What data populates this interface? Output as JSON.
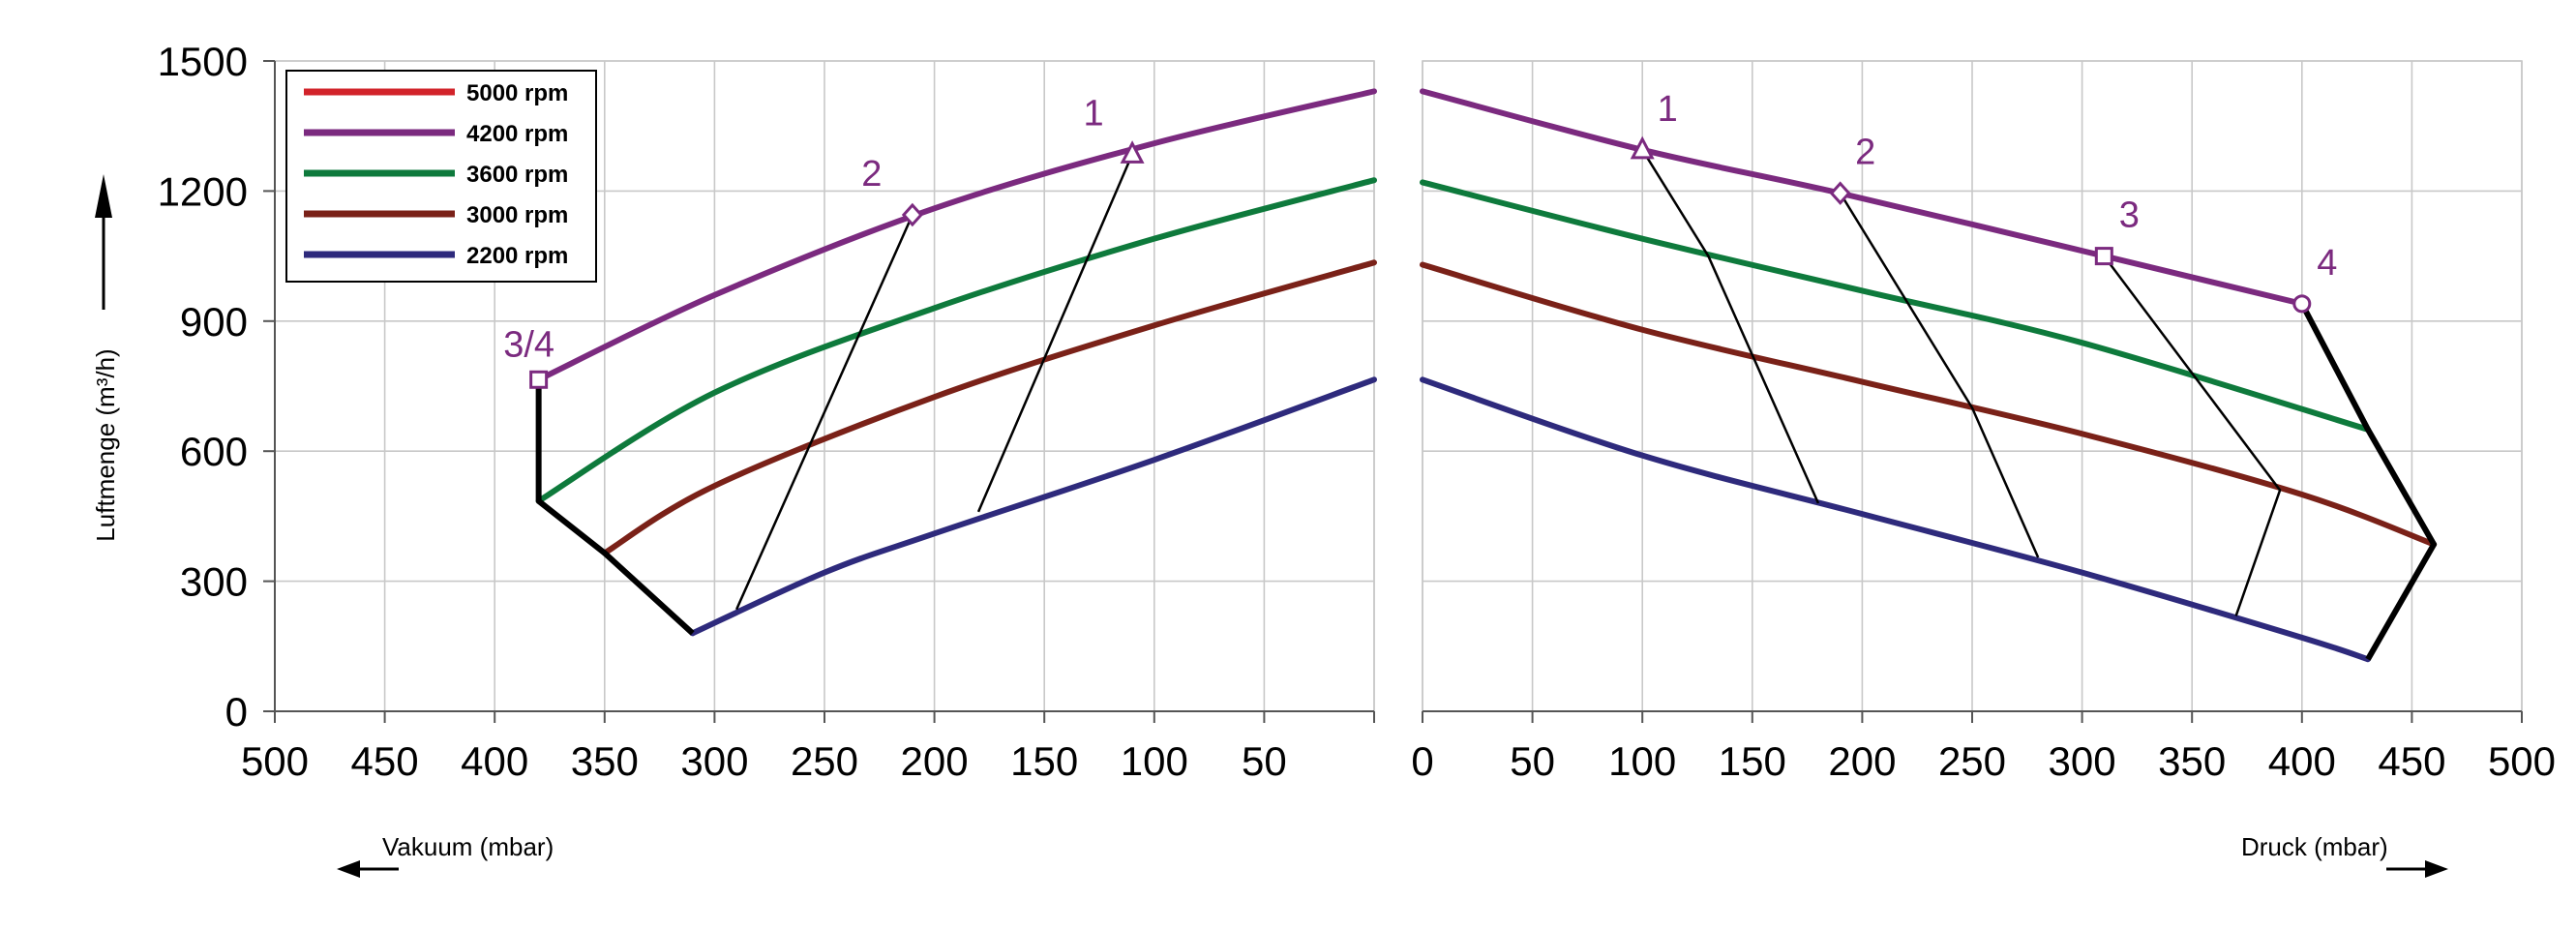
{
  "chart_data": {
    "type": "line",
    "y_axis": {
      "label": "Luftmenge (m³/h)",
      "ylim": [
        0,
        1500
      ],
      "ticks": [
        0,
        300,
        600,
        900,
        1200,
        1500
      ],
      "tick_labels": [
        "0",
        "300",
        "600",
        "900",
        "1200",
        "1500"
      ]
    },
    "panels": [
      {
        "name": "vacuum",
        "xlabel": "Vakuum (mbar)",
        "xlim": [
          500,
          0
        ],
        "x_ticks": [
          500,
          450,
          400,
          350,
          300,
          250,
          200,
          150,
          100,
          50
        ],
        "x_tick_labels": [
          "500",
          "450",
          "400",
          "350",
          "300",
          "250",
          "200",
          "150",
          "100",
          "50"
        ],
        "series": [
          {
            "name": "4200 rpm",
            "color": "#7b2a7f",
            "x": [
              380,
              300,
              200,
              100,
              0
            ],
            "y": [
              765,
              960,
              1160,
              1310,
              1430
            ]
          },
          {
            "name": "3600 rpm",
            "color": "#0e7a3c",
            "x": [
              380,
              300,
              200,
              100,
              0
            ],
            "y": [
              485,
              735,
              930,
              1090,
              1225
            ]
          },
          {
            "name": "3000 rpm",
            "color": "#7a2118",
            "x": [
              350,
              300,
              200,
              100,
              0
            ],
            "y": [
              365,
              520,
              725,
              890,
              1035
            ]
          },
          {
            "name": "2200 rpm",
            "color": "#2e2a7c",
            "x": [
              310,
              250,
              200,
              100,
              0
            ],
            "y": [
              180,
              320,
              410,
              580,
              765
            ]
          }
        ],
        "envelope": {
          "x": [
            380,
            380,
            350,
            310
          ],
          "y": [
            765,
            485,
            365,
            180
          ]
        },
        "operating_lines": [
          {
            "x": [
              110,
              180
            ],
            "y": [
              1285,
              460
            ]
          },
          {
            "x": [
              210,
              290
            ],
            "y": [
              1145,
              235
            ]
          }
        ],
        "points": [
          {
            "label": "1",
            "marker": "triangle",
            "x": 110,
            "y": 1285
          },
          {
            "label": "2",
            "marker": "diamond",
            "x": 210,
            "y": 1145
          },
          {
            "label": "3/4",
            "marker": "square",
            "x": 380,
            "y": 765
          }
        ]
      },
      {
        "name": "pressure",
        "xlabel": "Druck (mbar)",
        "xlim": [
          0,
          500
        ],
        "x_ticks": [
          0,
          50,
          100,
          150,
          200,
          250,
          300,
          350,
          400,
          450,
          500
        ],
        "x_tick_labels": [
          "0",
          "50",
          "100",
          "150",
          "200",
          "250",
          "300",
          "350",
          "400",
          "450",
          "500"
        ],
        "series": [
          {
            "name": "4200 rpm",
            "color": "#7b2a7f",
            "x": [
              0,
              100,
              190,
              310,
              400
            ],
            "y": [
              1430,
              1295,
              1195,
              1050,
              940
            ]
          },
          {
            "name": "3600 rpm",
            "color": "#0e7a3c",
            "x": [
              0,
              100,
              200,
              300,
              430
            ],
            "y": [
              1220,
              1090,
              970,
              850,
              650
            ]
          },
          {
            "name": "3000 rpm",
            "color": "#7a2118",
            "x": [
              0,
              100,
              200,
              300,
              400,
              460
            ],
            "y": [
              1030,
              880,
              760,
              640,
              500,
              385
            ]
          },
          {
            "name": "2200 rpm",
            "color": "#2e2a7c",
            "x": [
              0,
              100,
              200,
              300,
              400,
              430
            ],
            "y": [
              765,
              590,
              455,
              320,
              170,
              120
            ]
          }
        ],
        "envelope": {
          "x": [
            400,
            430,
            460,
            430
          ],
          "y": [
            940,
            650,
            385,
            120
          ]
        },
        "operating_lines": [
          {
            "x": [
              100,
              130,
              180
            ],
            "y": [
              1295,
              1050,
              480
            ]
          },
          {
            "x": [
              190,
              250,
              280
            ],
            "y": [
              1195,
              700,
              355
            ]
          },
          {
            "x": [
              310,
              390,
              370
            ],
            "y": [
              1050,
              510,
              220
            ]
          }
        ],
        "points": [
          {
            "label": "1",
            "marker": "triangle",
            "x": 100,
            "y": 1295
          },
          {
            "label": "2",
            "marker": "diamond",
            "x": 190,
            "y": 1195
          },
          {
            "label": "3",
            "marker": "square",
            "x": 310,
            "y": 1050
          },
          {
            "label": "4",
            "marker": "circle",
            "x": 400,
            "y": 940
          }
        ]
      }
    ],
    "legend": {
      "placement": "top-left",
      "entries": [
        {
          "name": "5000 rpm",
          "color": "#d2232a"
        },
        {
          "name": "4200 rpm",
          "color": "#7b2a7f"
        },
        {
          "name": "3600 rpm",
          "color": "#0e7a3c"
        },
        {
          "name": "3000 rpm",
          "color": "#7a2118"
        },
        {
          "name": "2200 rpm",
          "color": "#2e2a7c"
        }
      ]
    },
    "grid": true
  }
}
